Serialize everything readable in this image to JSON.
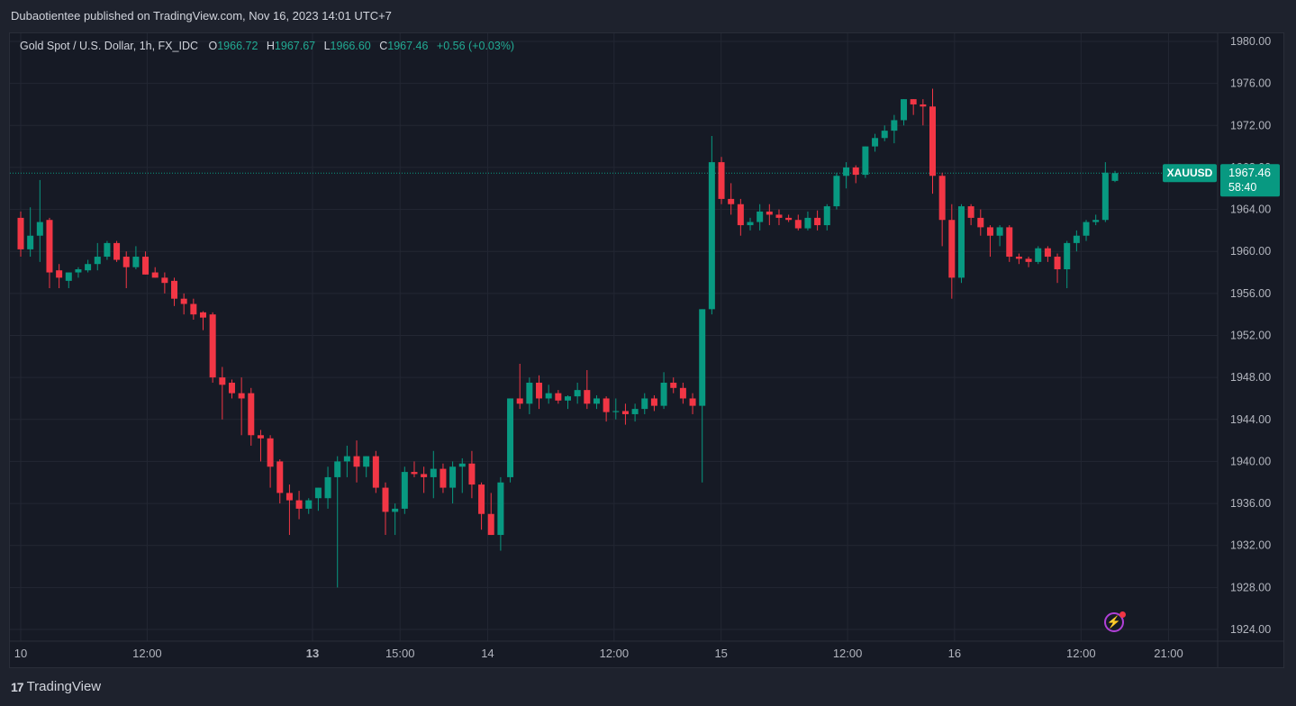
{
  "header": {
    "publisher_line": "Dubaotientee published on TradingView.com, Nov 16, 2023 14:01 UTC+7"
  },
  "legend": {
    "symbol": "Gold Spot / U.S. Dollar, 1h, FX_IDC",
    "o_label": "O",
    "o_value": "1966.72",
    "h_label": "H",
    "h_value": "1967.67",
    "l_label": "L",
    "l_value": "1966.60",
    "c_label": "C",
    "c_value": "1967.46",
    "change": "+0.56 (+0.03%)"
  },
  "price_tag": {
    "ticker": "XAUUSD",
    "price": "1967.46",
    "countdown": "58:40"
  },
  "footer": {
    "brand": "TradingView",
    "logo": "17"
  },
  "colors": {
    "up": "#089981",
    "down": "#f23645",
    "background": "#161a25",
    "grid": "#232733",
    "text": "#b2b5be"
  },
  "chart_data": {
    "type": "candlestick",
    "title": "Gold Spot / U.S. Dollar, 1h, FX_IDC",
    "y_ticks": [
      "1980.00",
      "1976.00",
      "1972.00",
      "1968.00",
      "1964.00",
      "1960.00",
      "1956.00",
      "1952.00",
      "1948.00",
      "1944.00",
      "1940.00",
      "1936.00",
      "1932.00",
      "1928.00",
      "1924.00"
    ],
    "x_ticks": [
      {
        "label": "10",
        "index": 0,
        "bold": false
      },
      {
        "label": "12:00",
        "index": 13,
        "bold": false
      },
      {
        "label": "13",
        "index": 30,
        "bold": true
      },
      {
        "label": "15:00",
        "index": 39,
        "bold": false
      },
      {
        "label": "14",
        "index": 48,
        "bold": false
      },
      {
        "label": "12:00",
        "index": 61,
        "bold": false
      },
      {
        "label": "15",
        "index": 72,
        "bold": false
      },
      {
        "label": "12:00",
        "index": 85,
        "bold": false
      },
      {
        "label": "16",
        "index": 96,
        "bold": false
      },
      {
        "label": "12:00",
        "index": 109,
        "bold": false
      },
      {
        "label": "21:00",
        "index": 118,
        "bold": false
      }
    ],
    "ylim": [
      1922.8,
      1981.2
    ],
    "grid": true,
    "last_price": 1967.46,
    "candles": [
      [
        1963.2,
        1963.8,
        1959.5,
        1960.2
      ],
      [
        1960.2,
        1964.2,
        1959.5,
        1961.5
      ],
      [
        1961.5,
        1966.8,
        1959,
        1962.8
      ],
      [
        1963,
        1963.2,
        1956.5,
        1958
      ],
      [
        1958.2,
        1958.8,
        1956.5,
        1957.5
      ],
      [
        1957.2,
        1958,
        1956.5,
        1958
      ],
      [
        1958,
        1958.5,
        1957.5,
        1958.3
      ],
      [
        1958.2,
        1959.2,
        1958,
        1958.8
      ],
      [
        1958.8,
        1960.8,
        1958.2,
        1959.5
      ],
      [
        1959.5,
        1961,
        1959.2,
        1960.8
      ],
      [
        1960.8,
        1961,
        1959,
        1959.2
      ],
      [
        1959.5,
        1960,
        1956.5,
        1958.5
      ],
      [
        1958.5,
        1960.5,
        1958.3,
        1959.5
      ],
      [
        1959.5,
        1960,
        1957.8,
        1957.8
      ],
      [
        1958,
        1958.5,
        1957.5,
        1957.5
      ],
      [
        1957.5,
        1958,
        1956,
        1957
      ],
      [
        1957.2,
        1957.5,
        1954.8,
        1955.5
      ],
      [
        1955.5,
        1956,
        1954,
        1955
      ],
      [
        1955,
        1955.5,
        1953.5,
        1954
      ],
      [
        1954.2,
        1954.3,
        1952.5,
        1953.7
      ],
      [
        1954,
        1954.2,
        1947.5,
        1948
      ],
      [
        1948,
        1949,
        1944,
        1947.3
      ],
      [
        1947.5,
        1947.8,
        1946,
        1946.5
      ],
      [
        1946.5,
        1948,
        1942.5,
        1946
      ],
      [
        1946.5,
        1947,
        1941.5,
        1942.5
      ],
      [
        1942.5,
        1943,
        1940,
        1942.2
      ],
      [
        1942.2,
        1942.5,
        1937.5,
        1939.5
      ],
      [
        1940,
        1940.2,
        1936,
        1937
      ],
      [
        1937,
        1937.8,
        1933,
        1936.3
      ],
      [
        1936.3,
        1937.2,
        1934.5,
        1935.5
      ],
      [
        1935.5,
        1936.5,
        1935,
        1936.3
      ],
      [
        1936.5,
        1937.5,
        1935.3,
        1937.5
      ],
      [
        1936.5,
        1939.5,
        1935.5,
        1938.5
      ],
      [
        1938.5,
        1940.5,
        1928,
        1940
      ],
      [
        1940,
        1941.5,
        1938.5,
        1940.5
      ],
      [
        1940.5,
        1942,
        1938,
        1939.5
      ],
      [
        1939.5,
        1940.5,
        1938.5,
        1940.5
      ],
      [
        1940.5,
        1941,
        1937,
        1937.5
      ],
      [
        1937.5,
        1938,
        1933,
        1935.2
      ],
      [
        1935.2,
        1936,
        1933,
        1935.5
      ],
      [
        1935.5,
        1939.5,
        1935,
        1939
      ],
      [
        1939,
        1940,
        1938.5,
        1938.8
      ],
      [
        1938.8,
        1939.5,
        1937,
        1938.5
      ],
      [
        1938.5,
        1941,
        1936.5,
        1939.3
      ],
      [
        1939.3,
        1939.8,
        1937,
        1937.5
      ],
      [
        1937.5,
        1940,
        1936,
        1939.5
      ],
      [
        1939.5,
        1940.3,
        1937,
        1939.8
      ],
      [
        1939.8,
        1941,
        1936.5,
        1937.8
      ]
    ]
  }
}
